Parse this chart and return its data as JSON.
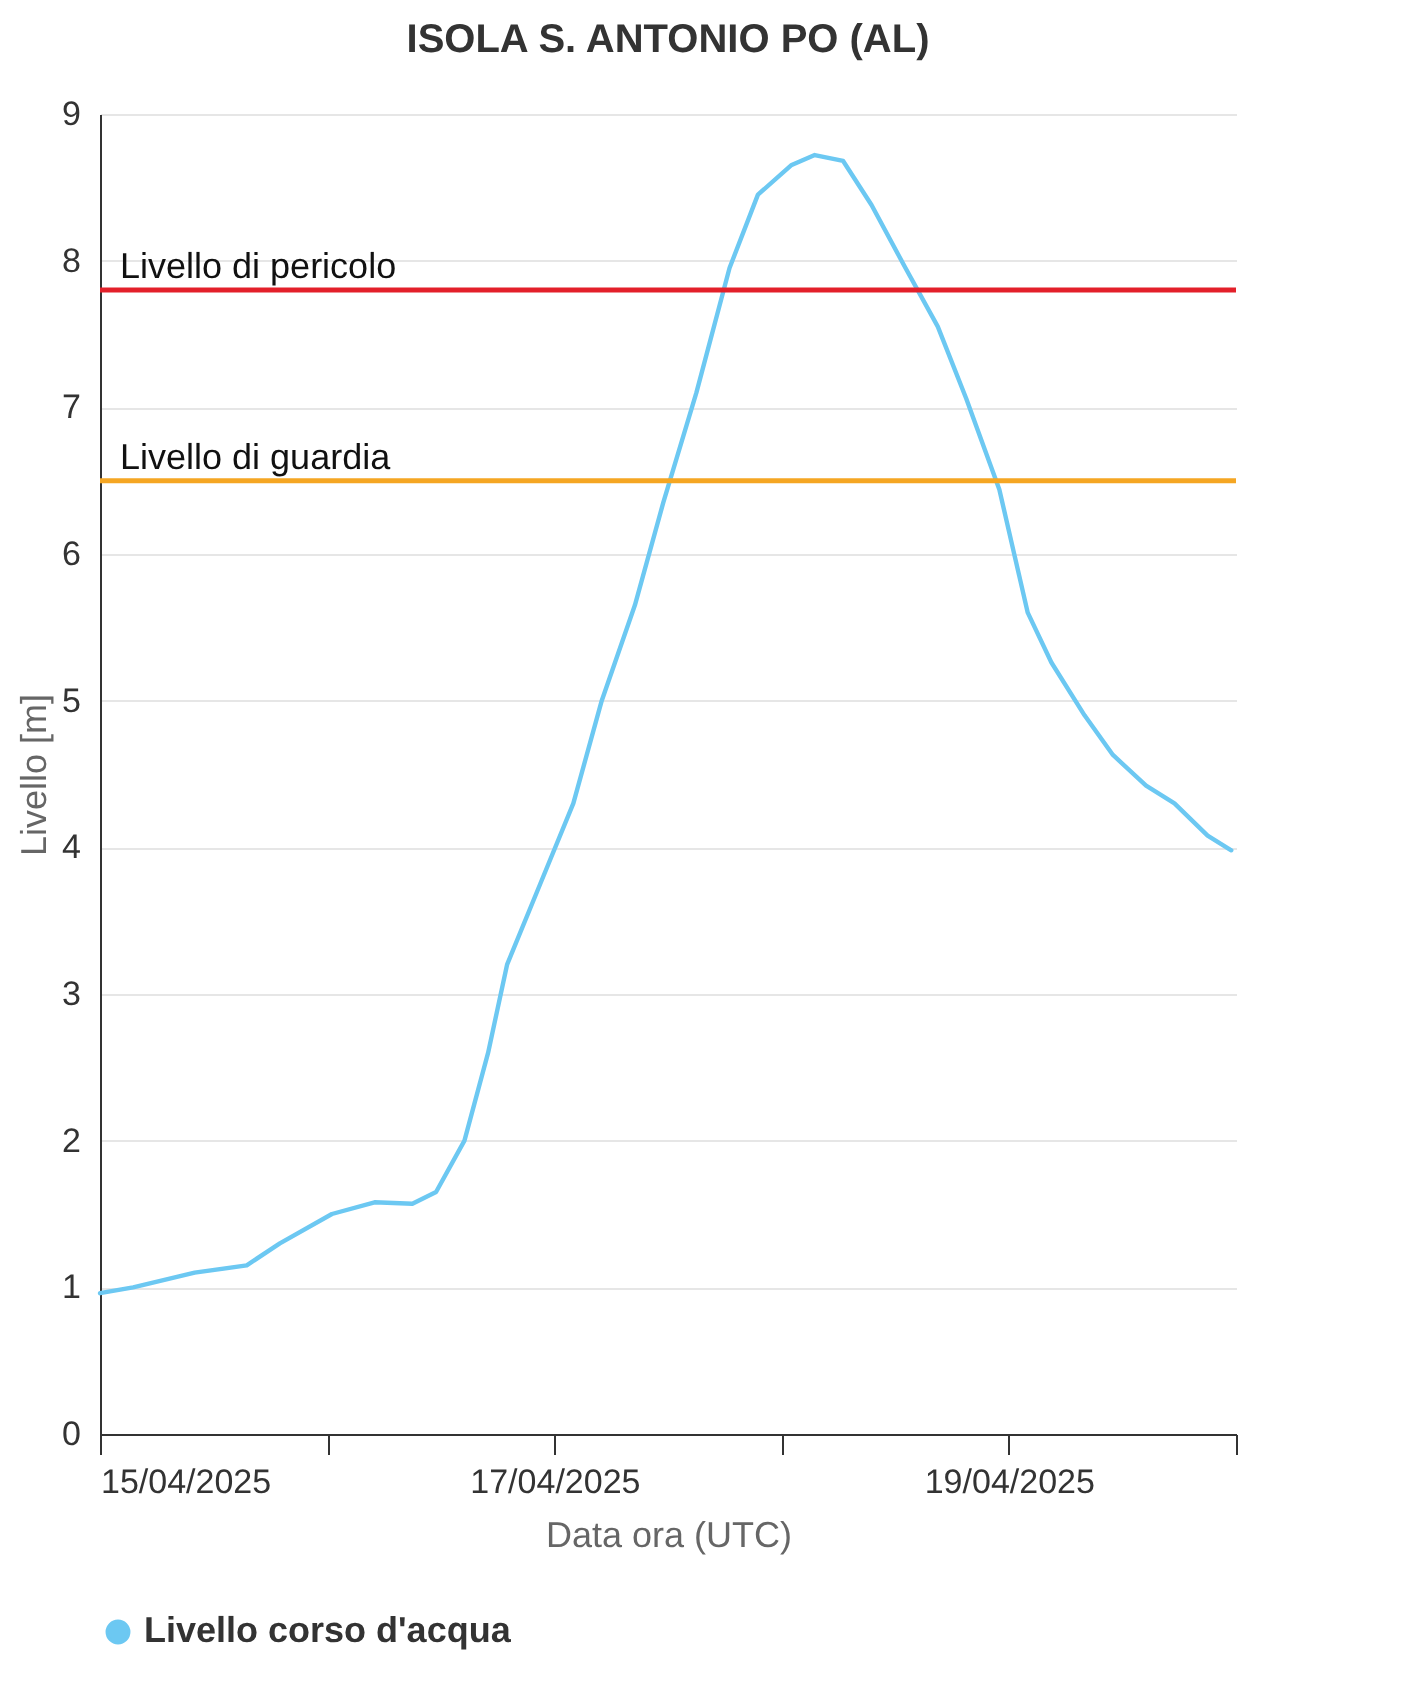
{
  "chart_data": {
    "type": "line",
    "title": "ISOLA S. ANTONIO PO (AL)",
    "xlabel": "Data ora (UTC)",
    "ylabel": "Livello [m]",
    "x": [
      "2025-04-15T00:00",
      "2025-04-15T03:30",
      "2025-04-15T10:00",
      "2025-04-15T15:30",
      "2025-04-15T19:00",
      "2025-04-16T00:30",
      "2025-04-16T05:00",
      "2025-04-16T09:00",
      "2025-04-16T11:30",
      "2025-04-16T14:30",
      "2025-04-16T17:00",
      "2025-04-16T19:00",
      "2025-04-16T22:30",
      "2025-04-17T02:00",
      "2025-04-17T05:00",
      "2025-04-17T08:30",
      "2025-04-17T11:30",
      "2025-04-17T15:00",
      "2025-04-17T18:30",
      "2025-04-17T21:30",
      "2025-04-18T01:00",
      "2025-04-18T03:30",
      "2025-04-18T06:30",
      "2025-04-18T09:30",
      "2025-04-18T13:00",
      "2025-04-18T16:30",
      "2025-04-18T19:30",
      "2025-04-18T23:00",
      "2025-04-19T02:00",
      "2025-04-19T04:30",
      "2025-04-19T08:00",
      "2025-04-19T11:00",
      "2025-04-19T14:30",
      "2025-04-19T17:30",
      "2025-04-19T21:00",
      "2025-04-19T23:30"
    ],
    "series": [
      {
        "name": "Livello corso d'acqua",
        "color": "#6cc8f2",
        "values": [
          0.96,
          1.0,
          1.1,
          1.15,
          1.3,
          1.5,
          1.58,
          1.57,
          1.65,
          2.0,
          2.6,
          3.2,
          3.75,
          4.3,
          5.0,
          5.65,
          6.35,
          7.1,
          7.95,
          8.45,
          8.65,
          8.72,
          8.68,
          8.38,
          7.96,
          7.55,
          7.06,
          6.44,
          5.6,
          5.26,
          4.9,
          4.63,
          4.42,
          4.3,
          4.08,
          3.98
        ]
      }
    ],
    "xlim": [
      "2025-04-15",
      "2025-04-20"
    ],
    "xticks": [
      {
        "value": "2025-04-15",
        "label": "15/04/2025"
      },
      {
        "value": "2025-04-16",
        "label": null
      },
      {
        "value": "2025-04-17",
        "label": "17/04/2025"
      },
      {
        "value": "2025-04-18",
        "label": null
      },
      {
        "value": "2025-04-19",
        "label": "19/04/2025"
      },
      {
        "value": "2025-04-20",
        "label": null
      }
    ],
    "ylim": [
      0,
      9
    ],
    "yticks": [
      0,
      1,
      2,
      3,
      4,
      5,
      6,
      7,
      8,
      9
    ],
    "ref_lines": [
      {
        "axis": "y",
        "value": 7.8,
        "label": "Livello di pericolo",
        "color": "#e3202a"
      },
      {
        "axis": "y",
        "value": 6.5,
        "label": "Livello di guardia",
        "color": "#f5a623"
      }
    ],
    "grid": "y",
    "legend": "bottom"
  }
}
